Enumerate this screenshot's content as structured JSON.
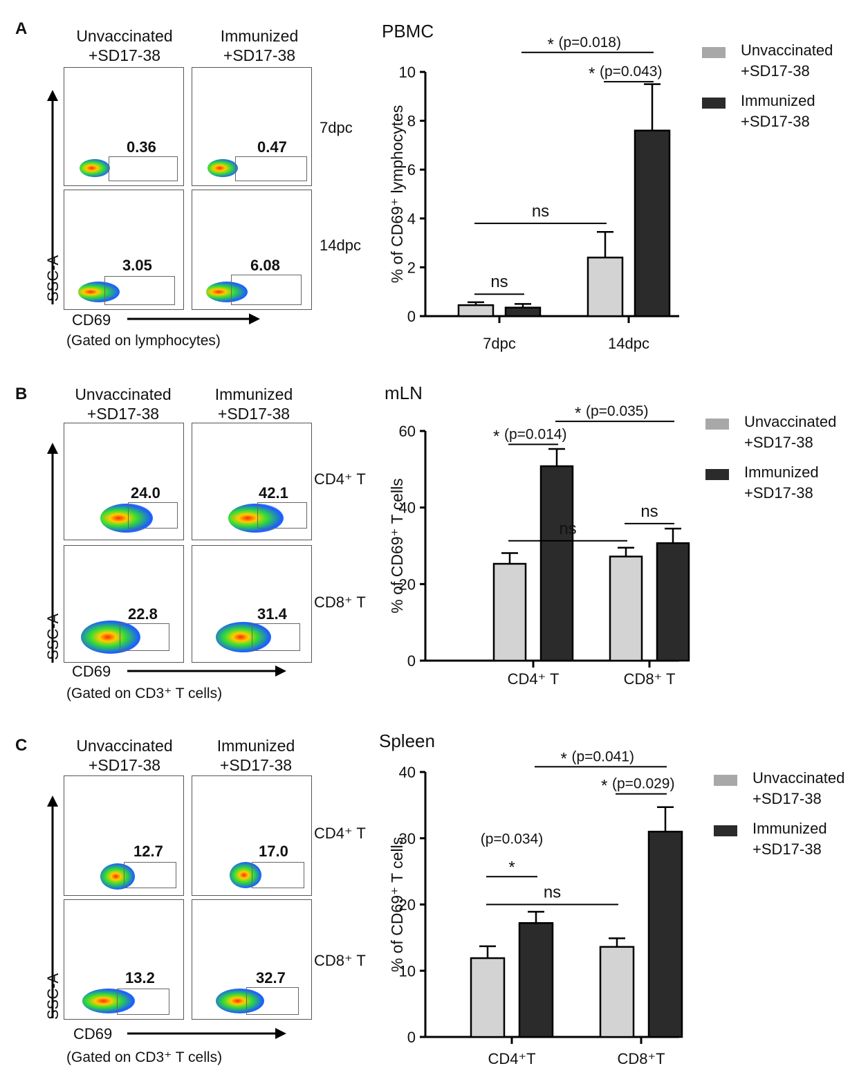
{
  "panels": [
    {
      "letter": "A",
      "col_headers": [
        {
          "line1": "Unvaccinated",
          "line2": "+SD17-38"
        },
        {
          "line1": "Immunized",
          "line2": "+SD17-38"
        }
      ],
      "rows": [
        {
          "label": "7dpc",
          "values": [
            "0.36",
            "0.47"
          ]
        },
        {
          "label": "14dpc",
          "values": [
            "3.05",
            "6.08"
          ]
        }
      ],
      "y_axis": "SSC-A",
      "x_axis": "CD69",
      "gated": "(Gated on lymphocytes)"
    },
    {
      "letter": "B",
      "col_headers": [
        {
          "line1": "Unvaccinated",
          "line2": "+SD17-38"
        },
        {
          "line1": "Immunized",
          "line2": "+SD17-38"
        }
      ],
      "rows": [
        {
          "label": "CD4⁺ T",
          "values": [
            "24.0",
            "42.1"
          ]
        },
        {
          "label": "CD8⁺ T",
          "values": [
            "22.8",
            "31.4"
          ]
        }
      ],
      "y_axis": "SSC-A",
      "x_axis": "CD69",
      "gated": "(Gated on CD3⁺ T cells)"
    },
    {
      "letter": "C",
      "col_headers": [
        {
          "line1": "Unvaccinated",
          "line2": "+SD17-38"
        },
        {
          "line1": "Immunized",
          "line2": "+SD17-38"
        }
      ],
      "rows": [
        {
          "label": "CD4⁺ T",
          "values": [
            "12.7",
            "17.0"
          ]
        },
        {
          "label": "CD8⁺ T",
          "values": [
            "13.2",
            "32.7"
          ]
        }
      ],
      "y_axis": "SSC-A",
      "x_axis": "CD69",
      "gated": "(Gated on CD3⁺ T cells)"
    }
  ],
  "colors": {
    "unvaccinated": "#d3d3d3",
    "immunized": "#2b2b2b",
    "legend_unvaccinated": "#a8a8a8"
  },
  "chart_data": [
    {
      "type": "bar",
      "title": "PBMC",
      "ylabel": "% of CD69⁺ lymphocytes",
      "ylim": [
        0,
        10
      ],
      "yticks": [
        0,
        2,
        4,
        6,
        8,
        10
      ],
      "categories": [
        "7dpc",
        "14dpc"
      ],
      "series": [
        {
          "name": "Unvaccinated +SD17-38",
          "legend": [
            "Unvaccinated",
            "+SD17-38"
          ],
          "values": [
            0.45,
            2.4
          ],
          "errors": [
            0.12,
            1.05
          ]
        },
        {
          "name": "Immunized +SD17-38",
          "legend": [
            "Immunized",
            "+SD17-38"
          ],
          "values": [
            0.35,
            7.6
          ],
          "errors": [
            0.15,
            1.9
          ]
        }
      ],
      "annotations": [
        {
          "from": [
            0,
            0
          ],
          "to": [
            0,
            1
          ],
          "y": 0.9,
          "text": "ns",
          "star": false
        },
        {
          "from": [
            0,
            0
          ],
          "to": [
            1,
            0
          ],
          "y": 3.8,
          "text": "ns",
          "star": false
        },
        {
          "from": [
            1,
            0
          ],
          "to": [
            1,
            1
          ],
          "y": 9.6,
          "text": "(p=0.043)",
          "star": true
        },
        {
          "from": [
            0,
            1
          ],
          "to": [
            1,
            1
          ],
          "y": 10.8,
          "text": "(p=0.018)",
          "star": true
        }
      ]
    },
    {
      "type": "bar",
      "title": "mLN",
      "ylabel": "% of CD69⁺ T cells",
      "ylim": [
        0,
        60
      ],
      "yticks": [
        0,
        20,
        40,
        60
      ],
      "categories": [
        "CD4⁺ T",
        "CD8⁺ T"
      ],
      "series": [
        {
          "name": "Unvaccinated +SD17-38",
          "legend": [
            "Unvaccinated",
            "+SD17-38"
          ],
          "values": [
            25.3,
            27.2
          ],
          "errors": [
            2.8,
            2.3
          ]
        },
        {
          "name": "Immunized +SD17-38",
          "legend": [
            "Immunized",
            "+SD17-38"
          ],
          "values": [
            50.8,
            30.7
          ],
          "errors": [
            4.5,
            3.8
          ]
        }
      ],
      "annotations": [
        {
          "from": [
            0,
            0
          ],
          "to": [
            0,
            1
          ],
          "y": 56.5,
          "text": "(p=0.014)",
          "star": true
        },
        {
          "from": [
            0,
            1
          ],
          "to": [
            1,
            1
          ],
          "y": 62.5,
          "text": "(p=0.035)",
          "star": true
        },
        {
          "from": [
            0,
            0
          ],
          "to": [
            1,
            0
          ],
          "y": 31.3,
          "text": "ns",
          "star": false
        },
        {
          "from": [
            1,
            0
          ],
          "to": [
            1,
            1
          ],
          "y": 35.8,
          "text": "ns",
          "star": false
        }
      ]
    },
    {
      "type": "bar",
      "title": "Spleen",
      "ylabel": "% of CD69⁺ T cells",
      "ylim": [
        0,
        40
      ],
      "yticks": [
        0,
        10,
        20,
        30,
        40
      ],
      "categories": [
        "CD4⁺T",
        "CD8⁺T"
      ],
      "series": [
        {
          "name": "Unvaccinated +SD17-38",
          "legend": [
            "Unvaccinated",
            "+SD17-38"
          ],
          "values": [
            11.9,
            13.6
          ],
          "errors": [
            1.8,
            1.3
          ]
        },
        {
          "name": "Immunized +SD17-38",
          "legend": [
            "Immunized",
            "+SD17-38"
          ],
          "values": [
            17.2,
            31.0
          ],
          "errors": [
            1.7,
            3.7
          ]
        }
      ],
      "annotations": [
        {
          "from": [
            0,
            0
          ],
          "to": [
            0,
            1
          ],
          "y": 24.2,
          "text": "(p=0.034)",
          "star": true,
          "text_above": true
        },
        {
          "from": [
            0,
            0
          ],
          "to": [
            1,
            0
          ],
          "y": 20.0,
          "text": "ns",
          "star": false
        },
        {
          "from": [
            1,
            0
          ],
          "to": [
            1,
            1
          ],
          "y": 36.7,
          "text": "(p=0.029)",
          "star": true
        },
        {
          "from": [
            0,
            1
          ],
          "to": [
            1,
            1
          ],
          "y": 40.8,
          "text": "(p=0.041)",
          "star": true
        }
      ]
    }
  ]
}
